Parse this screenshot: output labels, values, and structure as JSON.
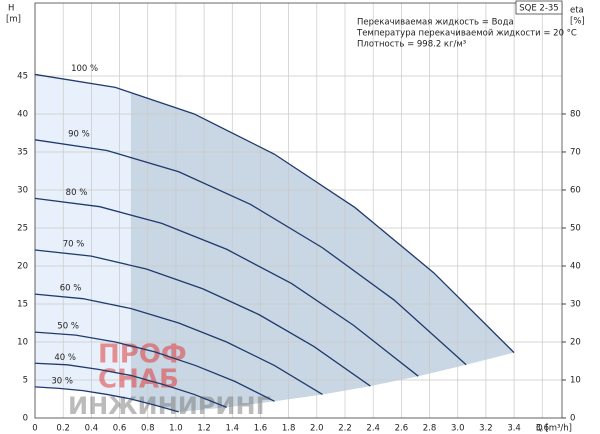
{
  "chart_data": {
    "type": "line",
    "model": "SQE 2-35",
    "info": [
      "Перекачиваемая жидкость = Вода",
      "Температура перекачиваемой жидкости = 20 °C",
      "Плотность = 998.2 кг/м³"
    ],
    "y_label": "H",
    "y_unit": "[m]",
    "y2_label": "eta",
    "y2_unit": "[%]",
    "x_label": "Q [m³/h]",
    "watermark": [
      "ПРОФ",
      "СНАБ",
      "ИНЖИНИРИНГ"
    ],
    "xlim": [
      0,
      3.74
    ],
    "ylim": [
      0,
      54.6
    ],
    "y2lim": [
      0,
      109.2
    ],
    "xticks": [
      0,
      0.2,
      0.4,
      0.6,
      0.8,
      {
        "value": 1,
        "label": "1.0"
      },
      1.2,
      1.4,
      1.6,
      1.8,
      {
        "value": 2,
        "label": "2.0"
      },
      2.2,
      2.4,
      2.6,
      2.8,
      {
        "value": 3,
        "label": "3.0"
      },
      3.2,
      3.4,
      3.6
    ],
    "yticks": [
      0,
      5,
      10,
      15,
      20,
      25,
      30,
      35,
      40,
      45
    ],
    "y2ticks": [
      0,
      10,
      20,
      30,
      40,
      50,
      60,
      70,
      80
    ],
    "grid": true,
    "line_color": "#1f3a6e",
    "area_color": "#c9d6e3",
    "area_light_color": "#e8f1fb",
    "shade_split_x": 0.68,
    "series": [
      {
        "name": "100 %",
        "x": [
          0,
          0.57,
          1.13,
          1.7,
          2.27,
          2.83,
          3.4
        ],
        "values": [
          45.2,
          43.5,
          40.0,
          34.7,
          27.7,
          19.1,
          8.6
        ]
      },
      {
        "name": "90 %",
        "x": [
          0,
          0.51,
          1.02,
          1.53,
          2.04,
          2.55,
          3.06
        ],
        "values": [
          36.6,
          35.2,
          32.4,
          28.1,
          22.4,
          15.5,
          7.0
        ]
      },
      {
        "name": "80 %",
        "x": [
          0,
          0.46,
          0.9,
          1.36,
          1.82,
          2.26,
          2.72
        ],
        "values": [
          28.9,
          27.8,
          25.6,
          22.2,
          17.7,
          12.2,
          5.5
        ]
      },
      {
        "name": "70 %",
        "x": [
          0,
          0.4,
          0.79,
          1.19,
          1.59,
          1.98,
          2.38
        ],
        "values": [
          22.1,
          21.3,
          19.6,
          17.0,
          13.6,
          9.4,
          4.2
        ]
      },
      {
        "name": "60 %",
        "x": [
          0,
          0.34,
          0.68,
          1.02,
          1.36,
          1.7,
          2.04
        ],
        "values": [
          16.3,
          15.7,
          14.4,
          12.5,
          10.0,
          6.9,
          3.1
        ]
      },
      {
        "name": "50 %",
        "x": [
          0,
          0.29,
          0.57,
          0.85,
          1.14,
          1.42,
          1.7
        ],
        "values": [
          11.3,
          10.9,
          10.0,
          8.7,
          6.9,
          4.8,
          2.2
        ]
      },
      {
        "name": "40 %",
        "x": [
          0,
          0.23,
          0.45,
          0.68,
          0.91,
          1.13,
          1.36
        ],
        "values": [
          7.2,
          7.0,
          6.4,
          5.6,
          4.4,
          3.1,
          1.4
        ]
      },
      {
        "name": "30 %",
        "x": [
          0,
          0.17,
          0.34,
          0.51,
          0.68,
          0.85,
          1.02
        ],
        "values": [
          4.1,
          3.9,
          3.6,
          3.1,
          2.5,
          1.7,
          0.8
        ]
      }
    ]
  }
}
